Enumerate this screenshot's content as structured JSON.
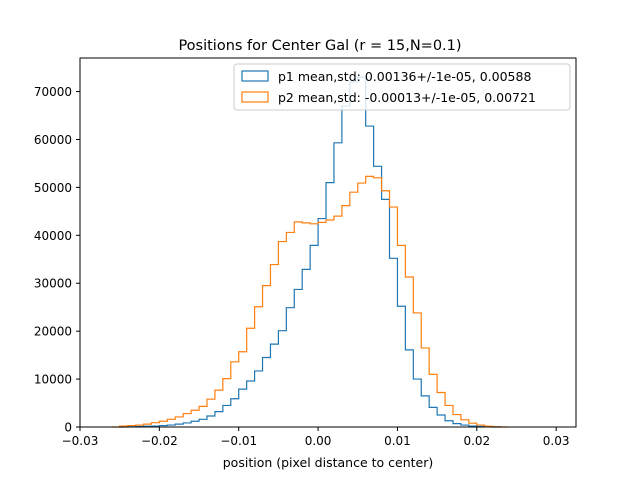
{
  "chart_data": {
    "type": "step-histogram",
    "title": "Positions for Center Gal (r = 15,N=0.1)",
    "xlabel": "position (pixel distance to center)",
    "ylabel": "",
    "xlim": [
      -0.03,
      0.0325
    ],
    "ylim": [
      0,
      77000
    ],
    "xticks": [
      -0.03,
      -0.02,
      -0.01,
      0.0,
      0.01,
      0.02,
      0.03
    ],
    "xtick_labels": [
      "−0.03",
      "−0.02",
      "−0.01",
      "0.00",
      "0.01",
      "0.02",
      "0.03"
    ],
    "yticks": [
      0,
      10000,
      20000,
      30000,
      40000,
      50000,
      60000,
      70000
    ],
    "ytick_labels": [
      "0",
      "10000",
      "20000",
      "30000",
      "40000",
      "50000",
      "60000",
      "70000"
    ],
    "grid": false,
    "legend_position": "top-right",
    "series": [
      {
        "name": "p1 mean,std: 0.00136+/-1e-05, 0.00588",
        "color": "#1f77b4",
        "bins": [
          [
            -0.025,
            0
          ],
          [
            -0.024,
            50
          ],
          [
            -0.023,
            100
          ],
          [
            -0.022,
            150
          ],
          [
            -0.021,
            200
          ],
          [
            -0.02,
            300
          ],
          [
            -0.019,
            400
          ],
          [
            -0.018,
            600
          ],
          [
            -0.017,
            850
          ],
          [
            -0.016,
            1200
          ],
          [
            -0.015,
            1600
          ],
          [
            -0.014,
            2300
          ],
          [
            -0.013,
            3200
          ],
          [
            -0.012,
            4500
          ],
          [
            -0.011,
            5900
          ],
          [
            -0.01,
            7900
          ],
          [
            -0.009,
            9600
          ],
          [
            -0.008,
            11700
          ],
          [
            -0.007,
            14500
          ],
          [
            -0.006,
            17300
          ],
          [
            -0.005,
            20100
          ],
          [
            -0.004,
            24900
          ],
          [
            -0.003,
            28700
          ],
          [
            -0.002,
            32900
          ],
          [
            -0.001,
            37900
          ],
          [
            0.0,
            43500
          ],
          [
            0.001,
            51000
          ],
          [
            0.002,
            59300
          ],
          [
            0.003,
            67000
          ],
          [
            0.004,
            72000
          ],
          [
            0.005,
            73000
          ],
          [
            0.006,
            62800
          ],
          [
            0.007,
            54400
          ],
          [
            0.008,
            47500
          ],
          [
            0.009,
            35200
          ],
          [
            0.01,
            25200
          ],
          [
            0.011,
            16100
          ],
          [
            0.012,
            10000
          ],
          [
            0.013,
            6500
          ],
          [
            0.014,
            4100
          ],
          [
            0.015,
            2500
          ],
          [
            0.016,
            1300
          ],
          [
            0.017,
            700
          ],
          [
            0.018,
            400
          ],
          [
            0.019,
            200
          ],
          [
            0.02,
            100
          ],
          [
            0.021,
            40
          ],
          [
            0.022,
            0
          ]
        ],
        "bin_width": 0.001
      },
      {
        "name": "p2 mean,std: -0.00013+/-1e-05, 0.00721",
        "color": "#ff7f0e",
        "bins": [
          [
            -0.026,
            0
          ],
          [
            -0.025,
            200
          ],
          [
            -0.024,
            300
          ],
          [
            -0.023,
            400
          ],
          [
            -0.022,
            600
          ],
          [
            -0.021,
            900
          ],
          [
            -0.02,
            1200
          ],
          [
            -0.019,
            1600
          ],
          [
            -0.018,
            2100
          ],
          [
            -0.017,
            2800
          ],
          [
            -0.016,
            3500
          ],
          [
            -0.015,
            4300
          ],
          [
            -0.014,
            5800
          ],
          [
            -0.013,
            7700
          ],
          [
            -0.012,
            10100
          ],
          [
            -0.011,
            13600
          ],
          [
            -0.01,
            15700
          ],
          [
            -0.009,
            20600
          ],
          [
            -0.008,
            25100
          ],
          [
            -0.007,
            29500
          ],
          [
            -0.006,
            33900
          ],
          [
            -0.005,
            38700
          ],
          [
            -0.004,
            40600
          ],
          [
            -0.003,
            42800
          ],
          [
            -0.002,
            42600
          ],
          [
            -0.001,
            42400
          ],
          [
            0.0,
            42700
          ],
          [
            0.001,
            43200
          ],
          [
            0.002,
            44000
          ],
          [
            0.003,
            46200
          ],
          [
            0.004,
            49000
          ],
          [
            0.005,
            50900
          ],
          [
            0.006,
            52300
          ],
          [
            0.007,
            52000
          ],
          [
            0.008,
            49300
          ],
          [
            0.009,
            45900
          ],
          [
            0.01,
            37900
          ],
          [
            0.011,
            31300
          ],
          [
            0.012,
            23800
          ],
          [
            0.013,
            16500
          ],
          [
            0.014,
            11000
          ],
          [
            0.015,
            7200
          ],
          [
            0.016,
            4500
          ],
          [
            0.017,
            2600
          ],
          [
            0.018,
            1500
          ],
          [
            0.019,
            800
          ],
          [
            0.02,
            400
          ],
          [
            0.021,
            150
          ],
          [
            0.022,
            50
          ],
          [
            0.023,
            0
          ]
        ],
        "bin_width": 0.001
      }
    ]
  }
}
